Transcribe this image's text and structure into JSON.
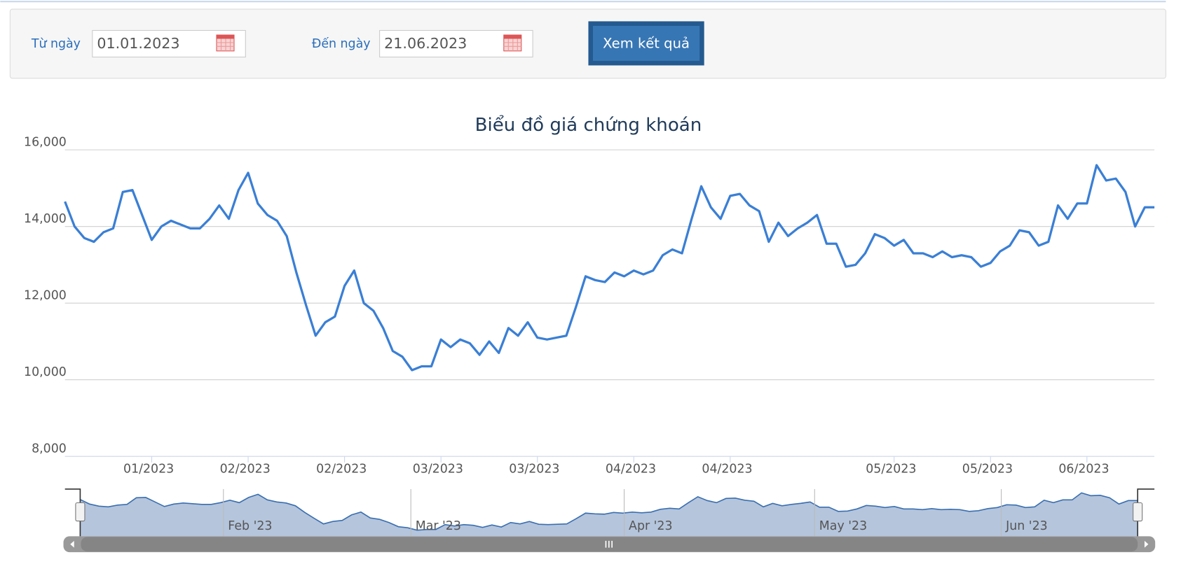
{
  "form": {
    "from_label": "Từ ngày",
    "from_value": "01.01.2023",
    "to_label": "Đến ngày",
    "to_value": "21.06.2023",
    "button": "Xem kết quả"
  },
  "chart_data": {
    "type": "line",
    "title": "Biểu đồ giá chứng khoán",
    "color": "#3a7fd5",
    "grid": true,
    "ylim": [
      8000,
      16000
    ],
    "yticks": [
      {
        "value": 8000,
        "label": "8,000"
      },
      {
        "value": 10000,
        "label": "10,000"
      },
      {
        "value": 12000,
        "label": "12,000"
      },
      {
        "value": 14000,
        "label": "14,000"
      },
      {
        "value": 16000,
        "label": "16,000"
      }
    ],
    "categories": [
      null,
      null,
      null,
      null,
      null,
      null,
      null,
      null,
      null,
      "01/2023",
      null,
      null,
      null,
      null,
      null,
      null,
      null,
      null,
      null,
      "02/2023",
      null,
      null,
      null,
      null,
      null,
      null,
      null,
      null,
      null,
      "02/2023",
      null,
      null,
      null,
      null,
      null,
      null,
      null,
      null,
      null,
      "03/2023",
      null,
      null,
      null,
      null,
      null,
      null,
      null,
      null,
      null,
      "03/2023",
      null,
      null,
      null,
      null,
      null,
      null,
      null,
      null,
      null,
      "04/2023",
      null,
      null,
      null,
      null,
      null,
      null,
      null,
      null,
      null,
      "04/2023",
      null,
      null,
      null,
      null,
      null,
      null,
      null,
      null,
      null,
      null,
      null,
      null,
      null,
      null,
      null,
      null,
      "05/2023",
      null,
      null,
      null,
      null,
      null,
      null,
      null,
      null,
      null,
      "05/2023",
      null,
      null,
      null,
      null,
      null,
      null,
      null,
      null,
      null,
      "06/2023",
      null,
      null,
      null,
      null,
      null,
      null,
      null
    ],
    "values": [
      14650,
      14000,
      13700,
      13600,
      13850,
      13950,
      14900,
      14950,
      14300,
      13650,
      14000,
      14150,
      14050,
      13950,
      13950,
      14200,
      14550,
      14200,
      14950,
      15400,
      14600,
      14300,
      14150,
      13750,
      12800,
      11950,
      11150,
      11500,
      11650,
      12450,
      12850,
      12000,
      11800,
      11350,
      10750,
      10600,
      10250,
      10350,
      10350,
      11050,
      10850,
      11050,
      10950,
      10650,
      11000,
      10700,
      11350,
      11150,
      11500,
      11100,
      11050,
      11100,
      11150,
      11900,
      12700,
      12600,
      12550,
      12800,
      12700,
      12850,
      12750,
      12850,
      13250,
      13400,
      13300,
      14200,
      15050,
      14500,
      14200,
      14800,
      14850,
      14550,
      14400,
      13600,
      14100,
      13750,
      13950,
      14100,
      14300,
      13550,
      13550,
      12950,
      13000,
      13300,
      13800,
      13700,
      13500,
      13650,
      13300,
      13300,
      13200,
      13350,
      13200,
      13250,
      13200,
      12950,
      13050,
      13350,
      13500,
      13900,
      13850,
      13500,
      13600,
      14550,
      14200,
      14600,
      14600,
      15600,
      15200,
      15250,
      14900,
      14000,
      14500,
      14500
    ],
    "navigator": {
      "labels": [
        "Feb '23",
        "Mar '23",
        "Apr '23",
        "May '23",
        "Jun '23"
      ]
    }
  }
}
